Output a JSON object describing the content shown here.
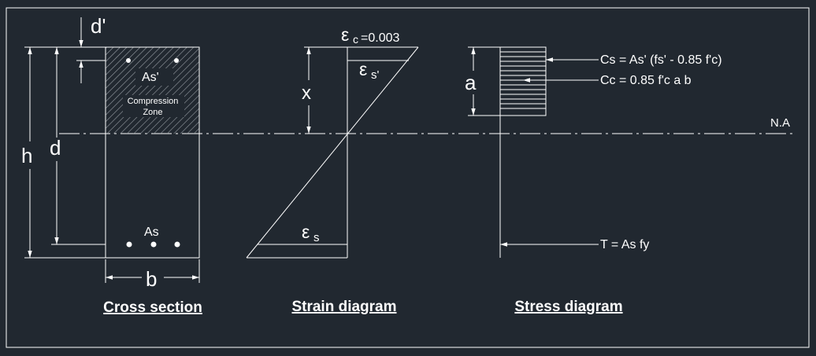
{
  "cross_section": {
    "d_prime": "d'",
    "h": "h",
    "d": "d",
    "as_prime": "As'",
    "compression_zone_1": "Compression",
    "compression_zone_2": "Zone",
    "as": "As",
    "b": "b",
    "caption": "Cross section"
  },
  "strain": {
    "eps_c_sym": "ε",
    "eps_c_sub": "c",
    "eps_c_val": "=0.003",
    "eps_s_prime_sym": "ε",
    "eps_s_prime_sub": "s'",
    "x": "x",
    "eps_s_sym": "ε",
    "eps_s_sub": "s",
    "caption": "Strain diagram"
  },
  "stress": {
    "a": "a",
    "cs": "Cs = As' (fs' - 0.85 f'c)",
    "cc": "Cc = 0.85 f'c a b",
    "t": "T = As fy",
    "caption": "Stress diagram"
  },
  "neutral_axis": "N.A"
}
